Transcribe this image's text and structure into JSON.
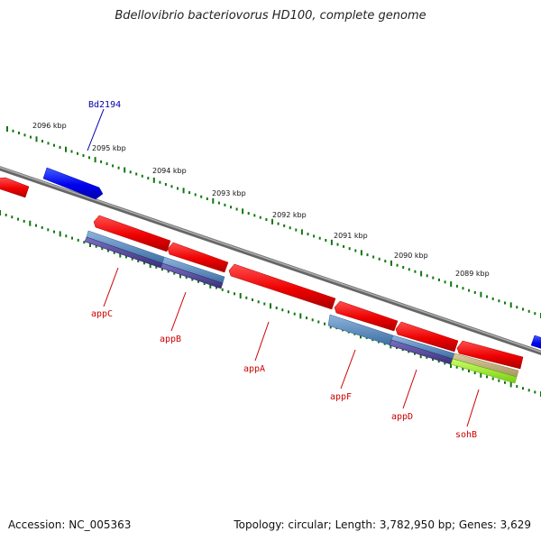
{
  "title": "Bdellovibrio bacteriovorus HD100, complete genome",
  "footer": {
    "accession": "Accession: NC_005363",
    "summary": "Topology: circular; Length: 3,782,950 bp; Genes: 3,629"
  },
  "ruler": {
    "ticks": [
      {
        "label": "2096 kbp"
      },
      {
        "label": "2095 kbp"
      },
      {
        "label": "2094 kbp"
      },
      {
        "label": "2093 kbp"
      },
      {
        "label": "2092 kbp"
      },
      {
        "label": "2091 kbp"
      },
      {
        "label": "2090 kbp"
      },
      {
        "label": "2089 kbp"
      }
    ]
  },
  "genes": [
    {
      "label": "Bd2194",
      "color": "#0000aa"
    },
    {
      "label": "appC",
      "color": "#cc0000"
    },
    {
      "label": "appB",
      "color": "#cc0000"
    },
    {
      "label": "appA",
      "color": "#cc0000"
    },
    {
      "label": "appF",
      "color": "#cc0000"
    },
    {
      "label": "appD",
      "color": "#cc0000"
    },
    {
      "label": "sohB",
      "color": "#cc0000"
    }
  ],
  "colors": {
    "backbone": "#888888",
    "forward_strand": "#0000ff",
    "reverse_strand": "#ff0000",
    "feature_steelblue": "#4a7fb5",
    "feature_slate": "#4a3f8a",
    "feature_khaki": "#b8a870",
    "feature_lime": "#99ee33",
    "ruler_dots": "#117711"
  }
}
